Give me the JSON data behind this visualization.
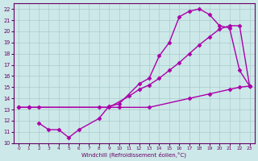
{
  "background_color": "#cde8e8",
  "grid_color": "#aacccc",
  "line_color": "#aa00aa",
  "marker": "D",
  "markersize": 2.5,
  "linewidth": 1.0,
  "xlim": [
    -0.5,
    23.5
  ],
  "ylim": [
    10,
    22.5
  ],
  "xticks": [
    0,
    1,
    2,
    3,
    4,
    5,
    6,
    7,
    8,
    9,
    10,
    11,
    12,
    13,
    14,
    15,
    16,
    17,
    18,
    19,
    20,
    21,
    22,
    23
  ],
  "yticks": [
    10,
    11,
    12,
    13,
    14,
    15,
    16,
    17,
    18,
    19,
    20,
    21,
    22
  ],
  "xlabel": "Windchill (Refroidissement éolien,°C)",
  "line1_x": [
    0,
    1,
    2,
    10,
    13,
    17,
    19,
    21,
    22,
    23
  ],
  "line1_y": [
    13.2,
    13.2,
    13.2,
    13.2,
    13.2,
    14.0,
    14.4,
    14.8,
    15.0,
    15.1
  ],
  "line2_x": [
    2,
    3,
    4,
    5,
    6,
    8,
    9,
    10,
    12,
    13,
    14,
    15,
    16,
    17,
    18,
    19,
    20,
    21,
    22,
    23
  ],
  "line2_y": [
    11.8,
    11.2,
    11.2,
    10.5,
    11.2,
    12.2,
    13.3,
    13.5,
    15.3,
    15.8,
    17.8,
    19.0,
    21.3,
    21.8,
    22.0,
    21.5,
    20.5,
    20.3,
    16.5,
    15.1
  ],
  "line3_x": [
    0,
    1,
    8,
    9,
    11,
    12,
    13,
    14,
    15,
    16,
    17,
    18,
    19,
    20,
    21,
    22,
    23
  ],
  "line3_y": [
    13.2,
    13.2,
    13.2,
    13.2,
    14.2,
    14.8,
    15.2,
    15.8,
    16.5,
    17.2,
    18.0,
    18.8,
    19.5,
    20.2,
    20.5,
    20.5,
    15.1
  ]
}
